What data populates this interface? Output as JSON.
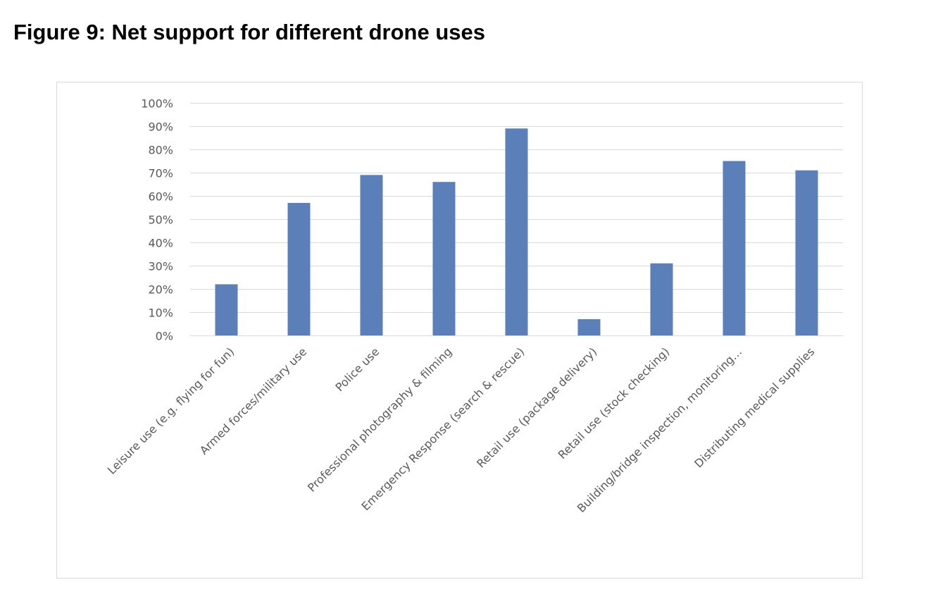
{
  "figure": {
    "title": "Figure 9: Net support for different drone uses"
  },
  "colors": {
    "bar": "#5b7fb8",
    "grid": "#d9d9d9",
    "text": "#595959",
    "frame": "#d9d9d9"
  },
  "chart_data": {
    "type": "bar",
    "title": "",
    "xlabel": "",
    "ylabel": "",
    "ylim": [
      0,
      1
    ],
    "yticks": [
      0,
      0.1,
      0.2,
      0.3,
      0.4,
      0.5,
      0.6,
      0.7,
      0.8,
      0.9,
      1.0
    ],
    "ytick_labels": [
      "0%",
      "10%",
      "20%",
      "30%",
      "40%",
      "50%",
      "60%",
      "70%",
      "80%",
      "90%",
      "100%"
    ],
    "grid": true,
    "legend": "none",
    "categories": [
      "Leisure use (e.g. flying for fun)",
      "Armed forces/military use",
      "Police use",
      "Professional photography & filming",
      "Emergency Response (search &  rescue)",
      "Retail use (package delivery)",
      "Retail use (stock checking)",
      "Building/bridge inspection, monitoring…",
      "Distributing medical supplies"
    ],
    "values": [
      0.22,
      0.57,
      0.69,
      0.66,
      0.89,
      0.07,
      0.31,
      0.75,
      0.71
    ]
  }
}
